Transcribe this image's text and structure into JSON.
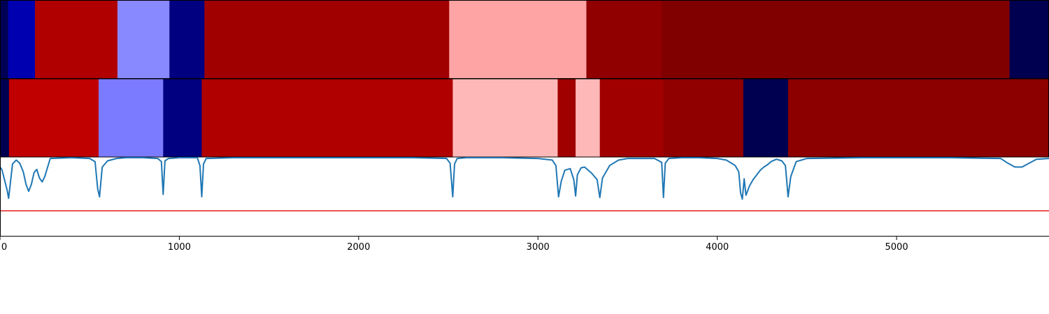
{
  "chart_data": [
    {
      "type": "heatmap",
      "panel": "top-segment-band",
      "xlim": [
        0,
        5850
      ],
      "segments": [
        {
          "start": 0,
          "end": 45,
          "color": "#000055"
        },
        {
          "start": 45,
          "end": 195,
          "color": "#0000b0"
        },
        {
          "start": 195,
          "end": 655,
          "color": "#b00000"
        },
        {
          "start": 655,
          "end": 945,
          "color": "#8888ff"
        },
        {
          "start": 945,
          "end": 1140,
          "color": "#000080"
        },
        {
          "start": 1140,
          "end": 2505,
          "color": "#a00000"
        },
        {
          "start": 2505,
          "end": 3270,
          "color": "#ffa4a4"
        },
        {
          "start": 3270,
          "end": 3690,
          "color": "#900000"
        },
        {
          "start": 3690,
          "end": 5630,
          "color": "#800000"
        },
        {
          "start": 5630,
          "end": 5850,
          "color": "#000050"
        }
      ]
    },
    {
      "type": "heatmap",
      "panel": "bottom-segment-band",
      "xlim": [
        0,
        5850
      ],
      "segments": [
        {
          "start": 0,
          "end": 50,
          "color": "#000050"
        },
        {
          "start": 50,
          "end": 550,
          "color": "#c00000"
        },
        {
          "start": 550,
          "end": 910,
          "color": "#7b7bff"
        },
        {
          "start": 910,
          "end": 1125,
          "color": "#000080"
        },
        {
          "start": 1125,
          "end": 2525,
          "color": "#b00000"
        },
        {
          "start": 2525,
          "end": 3110,
          "color": "#ffb8b8"
        },
        {
          "start": 3110,
          "end": 3210,
          "color": "#a00000"
        },
        {
          "start": 3210,
          "end": 3345,
          "color": "#ffb8b8"
        },
        {
          "start": 3345,
          "end": 3700,
          "color": "#a00000"
        },
        {
          "start": 3700,
          "end": 4145,
          "color": "#900000"
        },
        {
          "start": 4145,
          "end": 4395,
          "color": "#000050"
        },
        {
          "start": 4395,
          "end": 5850,
          "color": "#8c0000"
        }
      ]
    },
    {
      "type": "line",
      "panel": "signal-trace",
      "xlim": [
        0,
        5850
      ],
      "ylim": [
        0,
        1
      ],
      "xticks": [
        0,
        1000,
        2000,
        3000,
        4000,
        5000
      ],
      "xtick_labels": [
        "0",
        "1000",
        "2000",
        "3000",
        "4000",
        "5000"
      ],
      "threshold": {
        "y": 0.32,
        "color": "#e41a1c"
      },
      "series": [
        {
          "color": "#1f77b4",
          "x": [
            0,
            10,
            25,
            40,
            48,
            55,
            70,
            90,
            110,
            130,
            145,
            160,
            175,
            190,
            205,
            220,
            235,
            250,
            280,
            400,
            500,
            530,
            545,
            555,
            570,
            600,
            650,
            700,
            800,
            880,
            900,
            910,
            920,
            940,
            1000,
            1100,
            1115,
            1125,
            1135,
            1150,
            1300,
            1500,
            1700,
            1900,
            2100,
            2300,
            2490,
            2510,
            2525,
            2535,
            2550,
            2600,
            2800,
            3000,
            3080,
            3100,
            3115,
            3130,
            3150,
            3180,
            3200,
            3210,
            3220,
            3240,
            3260,
            3300,
            3330,
            3345,
            3360,
            3400,
            3450,
            3500,
            3650,
            3690,
            3700,
            3710,
            3730,
            3800,
            3900,
            4000,
            4050,
            4100,
            4120,
            4130,
            4140,
            4150,
            4160,
            4180,
            4200,
            4220,
            4240,
            4260,
            4280,
            4300,
            4330,
            4360,
            4380,
            4395,
            4410,
            4440,
            4500,
            4800,
            5000,
            5300,
            5580,
            5620,
            5660,
            5700,
            5740,
            5780,
            5850
          ],
          "y": [
            0.88,
            0.85,
            0.72,
            0.58,
            0.48,
            0.62,
            0.92,
            0.97,
            0.93,
            0.82,
            0.66,
            0.57,
            0.66,
            0.81,
            0.85,
            0.74,
            0.69,
            0.76,
            0.99,
            1.0,
            0.99,
            0.95,
            0.6,
            0.5,
            0.88,
            0.96,
            0.99,
            1.0,
            1.0,
            0.99,
            0.95,
            0.53,
            0.96,
            0.99,
            1.0,
            1.0,
            0.9,
            0.5,
            0.92,
            0.99,
            1.0,
            1.0,
            1.0,
            1.0,
            1.0,
            1.0,
            0.99,
            0.93,
            0.5,
            0.92,
            0.99,
            1.0,
            1.0,
            0.99,
            0.97,
            0.9,
            0.5,
            0.7,
            0.84,
            0.86,
            0.72,
            0.51,
            0.78,
            0.87,
            0.88,
            0.8,
            0.72,
            0.49,
            0.74,
            0.9,
            0.97,
            0.99,
            0.99,
            0.94,
            0.49,
            0.93,
            0.99,
            1.0,
            1.0,
            0.99,
            0.97,
            0.9,
            0.82,
            0.55,
            0.47,
            0.73,
            0.52,
            0.64,
            0.72,
            0.78,
            0.84,
            0.88,
            0.91,
            0.95,
            0.98,
            0.96,
            0.9,
            0.5,
            0.76,
            0.95,
            0.99,
            1.0,
            1.0,
            1.0,
            0.99,
            0.93,
            0.88,
            0.88,
            0.93,
            0.98,
            0.99
          ]
        }
      ]
    }
  ]
}
